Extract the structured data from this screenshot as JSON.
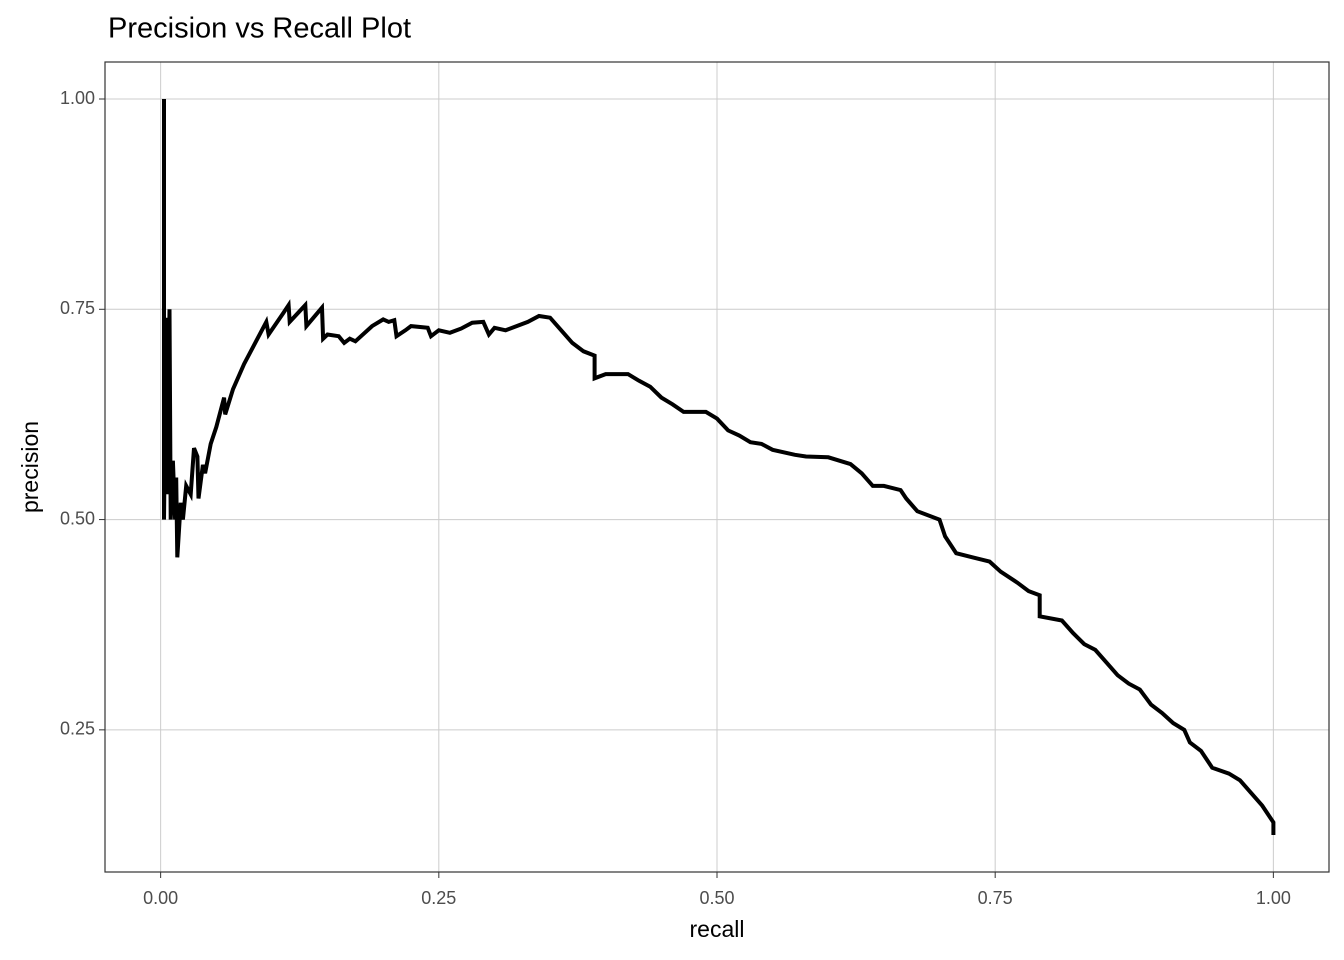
{
  "chart_data": {
    "type": "line",
    "title": "Precision vs Recall Plot",
    "x_label": "recall",
    "y_label": "precision",
    "color": "#000000",
    "grid": true,
    "xlim": [
      -0.05,
      1.05
    ],
    "ylim": [
      0.081,
      1.044
    ],
    "xticks": [
      {
        "value": 0,
        "label": "0.00"
      },
      0.25,
      {
        "value": 0.5,
        "label": "0.50"
      },
      0.75,
      {
        "value": 1,
        "label": "1.00"
      }
    ],
    "yticks": [
      0.25,
      {
        "value": 0.5,
        "label": "0.50"
      },
      0.75,
      {
        "value": 1,
        "label": "1.00"
      }
    ],
    "x": [
      0.003,
      0.003,
      0.005,
      0.006,
      0.008,
      0.009,
      0.011,
      0.013,
      0.014,
      0.015,
      0.018,
      0.02,
      0.023,
      0.027,
      0.03,
      0.033,
      0.034,
      0.038,
      0.04,
      0.045,
      0.05,
      0.057,
      0.058,
      0.065,
      0.075,
      0.085,
      0.095,
      0.097,
      0.11,
      0.115,
      0.116,
      0.13,
      0.131,
      0.145,
      0.146,
      0.15,
      0.16,
      0.165,
      0.17,
      0.175,
      0.19,
      0.2,
      0.205,
      0.21,
      0.212,
      0.22,
      0.225,
      0.24,
      0.243,
      0.25,
      0.26,
      0.27,
      0.28,
      0.29,
      0.295,
      0.3,
      0.31,
      0.33,
      0.34,
      0.35,
      0.36,
      0.37,
      0.38,
      0.39,
      0.39,
      0.4,
      0.42,
      0.43,
      0.44,
      0.45,
      0.46,
      0.47,
      0.49,
      0.5,
      0.51,
      0.52,
      0.53,
      0.54,
      0.55,
      0.57,
      0.58,
      0.6,
      0.62,
      0.63,
      0.64,
      0.65,
      0.665,
      0.67,
      0.68,
      0.7,
      0.705,
      0.715,
      0.73,
      0.745,
      0.755,
      0.77,
      0.78,
      0.79,
      0.79,
      0.81,
      0.82,
      0.83,
      0.84,
      0.85,
      0.86,
      0.87,
      0.88,
      0.89,
      0.9,
      0.91,
      0.92,
      0.925,
      0.935,
      0.945,
      0.96,
      0.97,
      0.98,
      0.99,
      0.995,
      1.0,
      1.0
    ],
    "values": [
      1.0,
      0.5,
      0.74,
      0.53,
      0.75,
      0.5,
      0.57,
      0.5,
      0.55,
      0.455,
      0.52,
      0.5,
      0.54,
      0.53,
      0.585,
      0.575,
      0.525,
      0.565,
      0.555,
      0.59,
      0.61,
      0.645,
      0.625,
      0.655,
      0.685,
      0.71,
      0.735,
      0.72,
      0.745,
      0.755,
      0.735,
      0.755,
      0.73,
      0.752,
      0.715,
      0.72,
      0.718,
      0.71,
      0.715,
      0.712,
      0.73,
      0.738,
      0.735,
      0.737,
      0.718,
      0.725,
      0.73,
      0.728,
      0.718,
      0.725,
      0.722,
      0.727,
      0.734,
      0.735,
      0.72,
      0.728,
      0.725,
      0.735,
      0.742,
      0.74,
      0.725,
      0.71,
      0.7,
      0.695,
      0.668,
      0.673,
      0.673,
      0.665,
      0.658,
      0.645,
      0.637,
      0.628,
      0.628,
      0.62,
      0.606,
      0.6,
      0.592,
      0.59,
      0.583,
      0.577,
      0.575,
      0.574,
      0.566,
      0.555,
      0.54,
      0.54,
      0.535,
      0.525,
      0.51,
      0.5,
      0.48,
      0.46,
      0.455,
      0.45,
      0.438,
      0.425,
      0.415,
      0.41,
      0.385,
      0.38,
      0.365,
      0.352,
      0.345,
      0.33,
      0.315,
      0.305,
      0.298,
      0.28,
      0.27,
      0.258,
      0.25,
      0.235,
      0.225,
      0.205,
      0.198,
      0.19,
      0.175,
      0.16,
      0.15,
      0.14,
      0.125
    ]
  }
}
